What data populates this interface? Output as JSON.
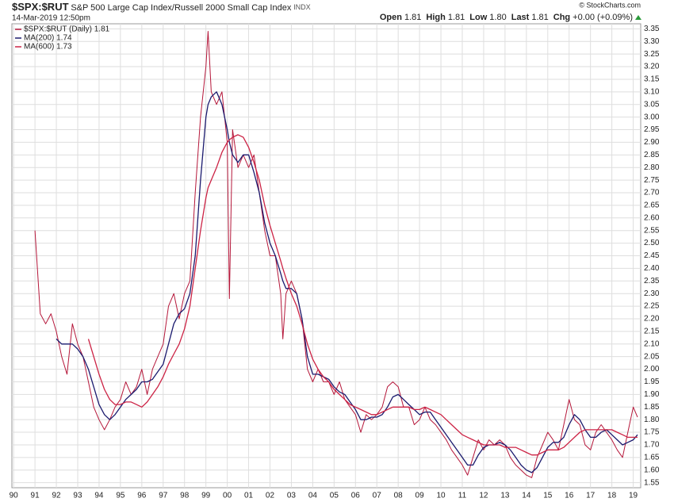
{
  "header": {
    "symbol": "$SPX:$RUT",
    "description": "S&P 500 Large Cap Index/Russell 2000 Small Cap Index",
    "exchange": "INDX",
    "date": "14-Mar-2019 12:50pm",
    "copyright": "© StockCharts.com",
    "quote": [
      {
        "label": "Open",
        "value": "1.81"
      },
      {
        "label": "High",
        "value": "1.81"
      },
      {
        "label": "Low",
        "value": "1.80"
      },
      {
        "label": "Last",
        "value": "1.81"
      },
      {
        "label": "Chg",
        "value": "+0.00 (+0.09%)"
      }
    ]
  },
  "chart_data": {
    "type": "line",
    "grid": true,
    "legend": "upper left",
    "x": [
      1991.0,
      1991.25,
      1991.5,
      1991.75,
      1992.0,
      1992.25,
      1992.5,
      1992.75,
      1993.0,
      1993.25,
      1993.5,
      1993.75,
      1994.0,
      1994.25,
      1994.5,
      1994.75,
      1995.0,
      1995.25,
      1995.5,
      1995.75,
      1996.0,
      1996.25,
      1996.5,
      1996.75,
      1997.0,
      1997.25,
      1997.5,
      1997.75,
      1998.0,
      1998.25,
      1998.5,
      1998.75,
      1999.0,
      1999.1,
      1999.25,
      1999.5,
      1999.75,
      2000.0,
      2000.1,
      2000.25,
      2000.5,
      2000.75,
      2001.0,
      2001.25,
      2001.5,
      2001.75,
      2002.0,
      2002.25,
      2002.5,
      2002.6,
      2002.75,
      2003.0,
      2003.25,
      2003.5,
      2003.75,
      2004.0,
      2004.25,
      2004.5,
      2004.75,
      2005.0,
      2005.25,
      2005.5,
      2005.75,
      2006.0,
      2006.25,
      2006.5,
      2006.75,
      2007.0,
      2007.25,
      2007.5,
      2007.75,
      2008.0,
      2008.25,
      2008.5,
      2008.75,
      2009.0,
      2009.25,
      2009.5,
      2009.75,
      2010.0,
      2010.25,
      2010.5,
      2010.75,
      2011.0,
      2011.25,
      2011.5,
      2011.75,
      2012.0,
      2012.25,
      2012.5,
      2012.75,
      2013.0,
      2013.25,
      2013.5,
      2013.75,
      2014.0,
      2014.25,
      2014.5,
      2014.75,
      2015.0,
      2015.25,
      2015.5,
      2015.75,
      2016.0,
      2016.25,
      2016.5,
      2016.75,
      2017.0,
      2017.25,
      2017.5,
      2017.75,
      2018.0,
      2018.25,
      2018.5,
      2018.75,
      2019.0,
      2019.2
    ],
    "series": [
      {
        "name": "$SPX:$RUT (Daily) 1.81",
        "color": "#b5173a",
        "values": [
          2.55,
          2.22,
          2.18,
          2.22,
          2.15,
          2.05,
          1.98,
          2.18,
          2.1,
          2.05,
          1.95,
          1.85,
          1.8,
          1.76,
          1.8,
          1.85,
          1.88,
          1.95,
          1.9,
          1.93,
          2.0,
          1.9,
          2.0,
          2.05,
          2.1,
          2.25,
          2.3,
          2.2,
          2.3,
          2.35,
          2.7,
          3.0,
          3.2,
          3.34,
          3.1,
          3.05,
          3.1,
          2.9,
          2.28,
          2.95,
          2.8,
          2.85,
          2.8,
          2.85,
          2.7,
          2.55,
          2.45,
          2.45,
          2.3,
          2.12,
          2.3,
          2.35,
          2.3,
          2.2,
          2.0,
          1.95,
          2.0,
          1.95,
          1.95,
          1.9,
          1.95,
          1.88,
          1.85,
          1.82,
          1.75,
          1.82,
          1.8,
          1.82,
          1.85,
          1.93,
          1.95,
          1.93,
          1.85,
          1.85,
          1.78,
          1.8,
          1.85,
          1.8,
          1.78,
          1.75,
          1.72,
          1.68,
          1.65,
          1.62,
          1.58,
          1.65,
          1.72,
          1.68,
          1.72,
          1.7,
          1.72,
          1.7,
          1.65,
          1.62,
          1.6,
          1.58,
          1.57,
          1.65,
          1.7,
          1.75,
          1.72,
          1.68,
          1.78,
          1.88,
          1.8,
          1.78,
          1.7,
          1.68,
          1.75,
          1.78,
          1.75,
          1.72,
          1.68,
          1.65,
          1.75,
          1.85,
          1.81
        ]
      },
      {
        "name": "MA(200) 1.74",
        "color": "#1a1a6e",
        "values": [
          null,
          null,
          null,
          null,
          2.12,
          2.1,
          2.1,
          2.1,
          2.08,
          2.05,
          2.0,
          1.93,
          1.86,
          1.82,
          1.8,
          1.82,
          1.85,
          1.88,
          1.9,
          1.92,
          1.95,
          1.95,
          1.96,
          1.99,
          2.02,
          2.1,
          2.18,
          2.22,
          2.24,
          2.3,
          2.45,
          2.75,
          3.0,
          3.05,
          3.08,
          3.1,
          3.05,
          2.95,
          2.9,
          2.85,
          2.82,
          2.85,
          2.85,
          2.78,
          2.7,
          2.58,
          2.5,
          2.45,
          2.38,
          2.35,
          2.32,
          2.32,
          2.3,
          2.2,
          2.05,
          1.98,
          1.98,
          1.97,
          1.96,
          1.93,
          1.91,
          1.9,
          1.87,
          1.84,
          1.8,
          1.8,
          1.81,
          1.81,
          1.82,
          1.85,
          1.89,
          1.9,
          1.88,
          1.86,
          1.84,
          1.82,
          1.83,
          1.83,
          1.8,
          1.77,
          1.74,
          1.71,
          1.68,
          1.65,
          1.62,
          1.62,
          1.66,
          1.69,
          1.7,
          1.7,
          1.71,
          1.7,
          1.68,
          1.65,
          1.62,
          1.6,
          1.59,
          1.61,
          1.65,
          1.69,
          1.71,
          1.71,
          1.73,
          1.78,
          1.82,
          1.8,
          1.76,
          1.73,
          1.73,
          1.75,
          1.76,
          1.74,
          1.72,
          1.7,
          1.71,
          1.72,
          1.74
        ]
      },
      {
        "name": "MA(600) 1.73",
        "color": "#cc2244",
        "values": [
          null,
          null,
          null,
          null,
          null,
          null,
          null,
          null,
          null,
          null,
          2.12,
          2.05,
          1.98,
          1.92,
          1.88,
          1.86,
          1.86,
          1.87,
          1.87,
          1.86,
          1.85,
          1.87,
          1.9,
          1.93,
          1.97,
          2.02,
          2.06,
          2.1,
          2.16,
          2.25,
          2.4,
          2.55,
          2.68,
          2.72,
          2.75,
          2.8,
          2.86,
          2.9,
          2.91,
          2.92,
          2.93,
          2.92,
          2.88,
          2.82,
          2.75,
          2.65,
          2.57,
          2.5,
          2.43,
          2.4,
          2.36,
          2.3,
          2.25,
          2.18,
          2.1,
          2.04,
          2.0,
          1.97,
          1.95,
          1.92,
          1.9,
          1.88,
          1.86,
          1.85,
          1.84,
          1.83,
          1.82,
          1.82,
          1.83,
          1.84,
          1.85,
          1.85,
          1.85,
          1.85,
          1.84,
          1.84,
          1.85,
          1.84,
          1.83,
          1.82,
          1.8,
          1.78,
          1.76,
          1.74,
          1.73,
          1.72,
          1.71,
          1.7,
          1.7,
          1.7,
          1.7,
          1.69,
          1.69,
          1.69,
          1.68,
          1.67,
          1.66,
          1.66,
          1.67,
          1.68,
          1.68,
          1.68,
          1.69,
          1.71,
          1.73,
          1.75,
          1.76,
          1.76,
          1.76,
          1.76,
          1.76,
          1.76,
          1.75,
          1.74,
          1.73,
          1.73,
          1.73
        ]
      }
    ],
    "xlim": [
      1989.92,
      2019.35
    ],
    "xticks": [
      {
        "value": 1990,
        "label": "90"
      },
      {
        "value": 1991,
        "label": "91"
      },
      {
        "value": 1992,
        "label": "92"
      },
      {
        "value": 1993,
        "label": "93"
      },
      {
        "value": 1994,
        "label": "94"
      },
      {
        "value": 1995,
        "label": "95"
      },
      {
        "value": 1996,
        "label": "96"
      },
      {
        "value": 1997,
        "label": "97"
      },
      {
        "value": 1998,
        "label": "98"
      },
      {
        "value": 1999,
        "label": "99"
      },
      {
        "value": 2000,
        "label": "00"
      },
      {
        "value": 2001,
        "label": "01"
      },
      {
        "value": 2002,
        "label": "02"
      },
      {
        "value": 2003,
        "label": "03"
      },
      {
        "value": 2004,
        "label": "04"
      },
      {
        "value": 2005,
        "label": "05"
      },
      {
        "value": 2006,
        "label": "06"
      },
      {
        "value": 2007,
        "label": "07"
      },
      {
        "value": 2008,
        "label": "08"
      },
      {
        "value": 2009,
        "label": "09"
      },
      {
        "value": 2010,
        "label": "10"
      },
      {
        "value": 2011,
        "label": "11"
      },
      {
        "value": 2012,
        "label": "12"
      },
      {
        "value": 2013,
        "label": "13"
      },
      {
        "value": 2014,
        "label": "14"
      },
      {
        "value": 2015,
        "label": "15"
      },
      {
        "value": 2016,
        "label": "16"
      },
      {
        "value": 2017,
        "label": "17"
      },
      {
        "value": 2018,
        "label": "18"
      },
      {
        "value": 2019,
        "label": "19"
      }
    ],
    "ylim": [
      1.53,
      3.37
    ],
    "yticks": [
      1.55,
      {
        "value": 1.6,
        "label": "1.60"
      },
      1.65,
      {
        "value": 1.7,
        "label": "1.70"
      },
      1.75,
      {
        "value": 1.8,
        "label": "1.80"
      },
      1.85,
      {
        "value": 1.9,
        "label": "1.90"
      },
      1.95,
      {
        "value": 2.0,
        "label": "2.00"
      },
      2.05,
      {
        "value": 2.1,
        "label": "2.10"
      },
      2.15,
      {
        "value": 2.2,
        "label": "2.20"
      },
      2.25,
      {
        "value": 2.3,
        "label": "2.30"
      },
      2.35,
      {
        "value": 2.4,
        "label": "2.40"
      },
      2.45,
      {
        "value": 2.5,
        "label": "2.50"
      },
      2.55,
      {
        "value": 2.6,
        "label": "2.60"
      },
      2.65,
      {
        "value": 2.7,
        "label": "2.70"
      },
      2.75,
      {
        "value": 2.8,
        "label": "2.80"
      },
      2.85,
      {
        "value": 2.9,
        "label": "2.90"
      },
      2.95,
      {
        "value": 3.0,
        "label": "3.00"
      },
      3.05,
      {
        "value": 3.1,
        "label": "3.10"
      },
      3.15,
      {
        "value": 3.2,
        "label": "3.20"
      },
      3.25,
      {
        "value": 3.3,
        "label": "3.30"
      },
      3.35
    ]
  }
}
